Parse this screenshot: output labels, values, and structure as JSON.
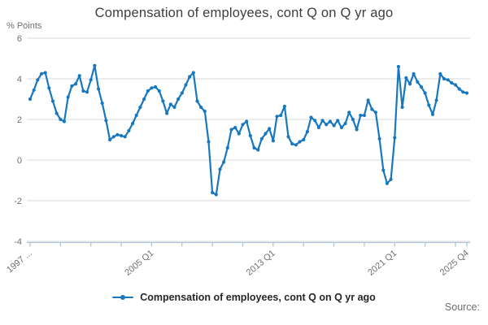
{
  "title": "Compensation of employees, cont Q on Q yr ago",
  "y_axis_unit": "% Points",
  "legend": {
    "label": "Compensation of employees, cont Q on Q yr ago"
  },
  "source_label": "Source:",
  "colors": {
    "line": "#1878bf",
    "grid": "#d9d9d9",
    "axis": "#aec3d5",
    "tick_text": "#707070",
    "title_text": "#3d3d3d"
  },
  "chart_data": {
    "type": "line",
    "title": "Compensation of employees, cont Q on Q yr ago",
    "ylabel": "% Points",
    "xlabel": "",
    "frequency": "quarterly",
    "x_start": "1997 Q1",
    "x_end": "2025 Q4",
    "ylim": [
      -4,
      6
    ],
    "y_ticks": [
      6,
      4,
      2,
      0,
      -2,
      -4
    ],
    "grid": "horizontal",
    "legend_position": "bottom",
    "x_tick_labels": [
      "1997 ...",
      "2005 Q1",
      "2013 Q1",
      "2021 Q1",
      "2025 Q4"
    ],
    "x_tick_label_indices": [
      0,
      32,
      64,
      96,
      115
    ],
    "minor_tick_every_quarters": 8,
    "series": [
      {
        "name": "Compensation of employees, cont Q on Q yr ago",
        "values": [
          3.0,
          3.45,
          3.95,
          4.25,
          4.3,
          3.55,
          2.9,
          2.3,
          2.0,
          1.9,
          3.1,
          3.65,
          3.75,
          4.15,
          3.4,
          3.35,
          3.95,
          4.65,
          3.5,
          2.8,
          1.95,
          1.0,
          1.15,
          1.25,
          1.2,
          1.15,
          1.45,
          1.8,
          2.2,
          2.6,
          3.0,
          3.4,
          3.55,
          3.6,
          3.4,
          2.9,
          2.3,
          2.75,
          2.6,
          3.0,
          3.3,
          3.7,
          4.1,
          4.3,
          2.9,
          2.6,
          2.4,
          0.9,
          -1.6,
          -1.7,
          -0.45,
          -0.1,
          0.6,
          1.5,
          1.6,
          1.3,
          1.75,
          1.9,
          1.2,
          0.6,
          0.5,
          1.05,
          1.3,
          1.55,
          0.95,
          2.15,
          2.2,
          2.65,
          1.15,
          0.8,
          0.75,
          0.9,
          1.0,
          1.4,
          2.1,
          1.95,
          1.6,
          1.95,
          1.75,
          1.9,
          1.7,
          1.95,
          1.6,
          1.8,
          2.35,
          2.0,
          1.5,
          2.2,
          2.2,
          2.95,
          2.5,
          2.35,
          1.05,
          -0.5,
          -1.15,
          -0.95,
          1.1,
          4.6,
          2.6,
          4.05,
          3.75,
          4.25,
          3.85,
          3.6,
          3.3,
          2.7,
          2.25,
          2.95,
          4.25,
          4.0,
          3.95,
          3.8,
          3.7,
          3.5,
          3.35,
          3.3
        ]
      }
    ]
  }
}
